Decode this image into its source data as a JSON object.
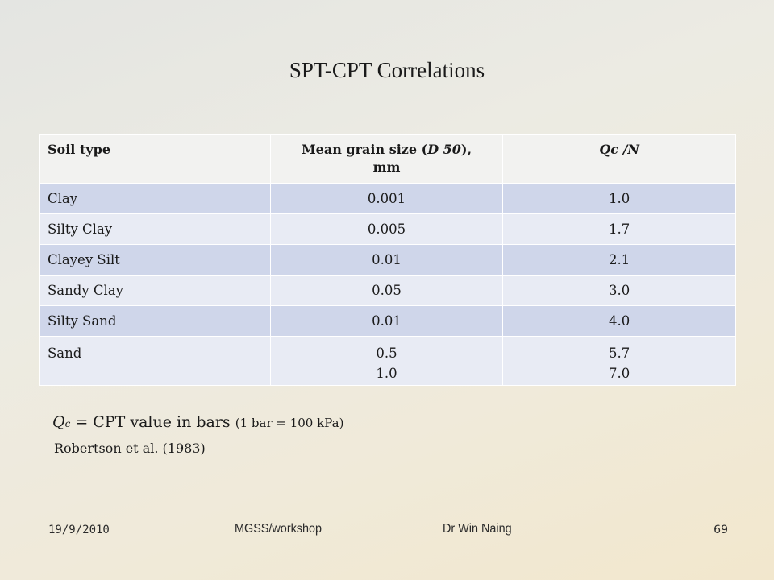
{
  "slide": {
    "title": "SPT-CPT Correlations"
  },
  "table": {
    "headers": {
      "soil_type": "Soil type",
      "grain_size_prefix": "Mean grain size (",
      "grain_size_symbol": "D 50",
      "grain_size_suffix": "),",
      "grain_size_unit": "mm",
      "ratio": "Qc /N"
    },
    "rows": [
      {
        "soil": "Clay",
        "grain_size": [
          "0.001"
        ],
        "ratio": [
          "1.0"
        ]
      },
      {
        "soil": "Silty Clay",
        "grain_size": [
          "0.005"
        ],
        "ratio": [
          "1.7"
        ]
      },
      {
        "soil": "Clayey Silt",
        "grain_size": [
          "0.01"
        ],
        "ratio": [
          "2.1"
        ]
      },
      {
        "soil": "Sandy Clay",
        "grain_size": [
          "0.05"
        ],
        "ratio": [
          "3.0"
        ]
      },
      {
        "soil": "Silty Sand",
        "grain_size": [
          "0.01"
        ],
        "ratio": [
          "4.0"
        ]
      },
      {
        "soil": "Sand",
        "grain_size": [
          "0.5",
          "1.0"
        ],
        "ratio": [
          "5.7",
          "7.0"
        ]
      }
    ]
  },
  "notes": {
    "qc_symbol": "Q",
    "qc_subscript": "c",
    "qc_text": " = CPT value in bars ",
    "qc_paren": "(1 bar = 100 kPa)",
    "reference": "Robertson et al. (1983)"
  },
  "footer": {
    "date": "19/9/2010",
    "workshop": "MGSS/workshop",
    "author": "Dr Win Naing",
    "page_number": "69"
  }
}
